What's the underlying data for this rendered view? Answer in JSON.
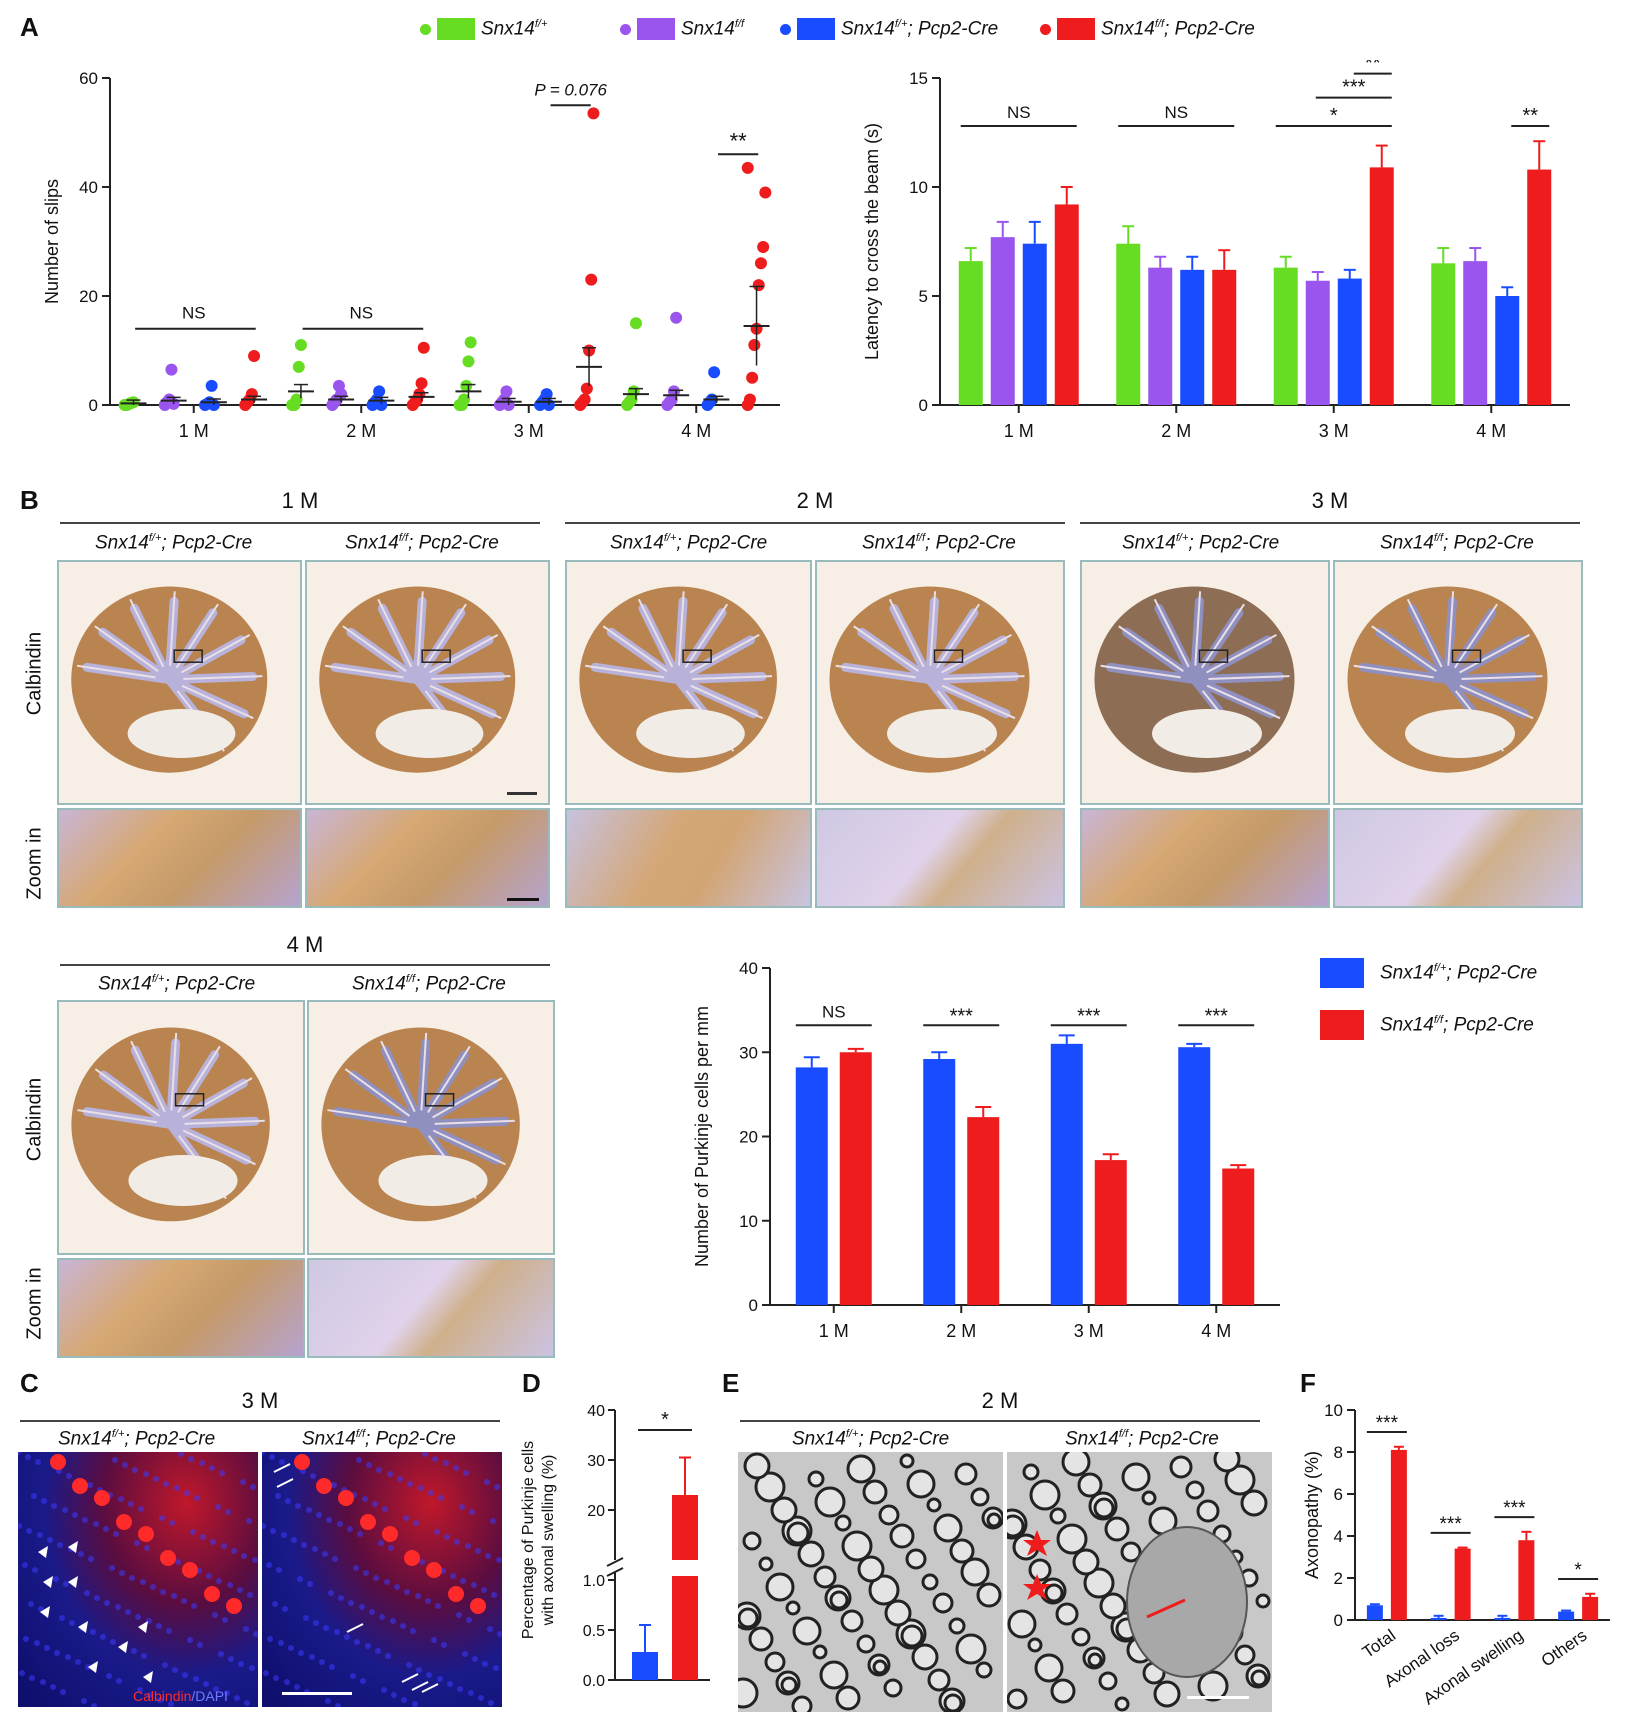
{
  "panels": {
    "A": "A",
    "B": "B",
    "C": "C",
    "D": "D",
    "E": "E",
    "F": "F"
  },
  "colors": {
    "green": "#66dd22",
    "purple": "#9955ee",
    "blue": "#1a4cff",
    "red": "#ee1c1c"
  },
  "legend": [
    {
      "label": "Snx14",
      "sup": "f/+",
      "color": "#66dd22",
      "suffix": ""
    },
    {
      "label": "Snx14",
      "sup": "f/f",
      "color": "#9955ee",
      "suffix": ""
    },
    {
      "label": "Snx14",
      "sup": "f/+",
      "color": "#1a4cff",
      "suffix": "; Pcp2-Cre"
    },
    {
      "label": "Snx14",
      "sup": "f/f",
      "color": "#ee1c1c",
      "suffix": "; Pcp2-Cre"
    }
  ],
  "genotypes": {
    "het_base": "Snx14",
    "het_sup": "f/+",
    "hom_base": "Snx14",
    "hom_sup": "f/f",
    "cre": "; Pcp2-Cre"
  },
  "row_labels": {
    "calbindin": "Calbindin",
    "zoom": "Zoom in"
  },
  "ages": {
    "m1": "1 M",
    "m2": "2 M",
    "m3": "3 M",
    "m4": "4 M"
  },
  "panel_c": {
    "title": "3 M",
    "stain_red": "Calbindin",
    "stain_blue": "DAPI"
  },
  "panel_e": {
    "title": "2 M"
  },
  "chart_data": [
    {
      "id": "A-slips",
      "type": "scatter",
      "title": "",
      "xlabel": "",
      "ylabel": "Number of slips",
      "ylim": [
        0,
        60
      ],
      "yticks": [
        0,
        20,
        40,
        60
      ],
      "categories": [
        "1 M",
        "2 M",
        "3 M",
        "4 M"
      ],
      "series_names": [
        "Snx14 f/+",
        "Snx14 f/f",
        "Snx14 f/+; Pcp2-Cre",
        "Snx14 f/f; Pcp2-Cre"
      ],
      "means": [
        [
          0.3,
          0.8,
          0.5,
          1.0
        ],
        [
          2.5,
          1.0,
          0.8,
          1.5
        ],
        [
          2.5,
          0.6,
          0.6,
          7.0
        ],
        [
          2.0,
          1.8,
          1.0,
          14.5
        ]
      ],
      "points": [
        [
          [
            0,
            0,
            0.2,
            0.4,
            0.5
          ],
          [
            0,
            0.5,
            1,
            6.5,
            0.2
          ],
          [
            0,
            0.2,
            0.5,
            3.5,
            0
          ],
          [
            0,
            0.5,
            1,
            2,
            9
          ]
        ],
        [
          [
            0,
            0,
            1,
            7,
            11
          ],
          [
            0,
            0.5,
            1,
            3.5,
            2
          ],
          [
            0,
            0.5,
            1,
            2.5,
            0
          ],
          [
            0,
            0.5,
            1,
            2,
            4,
            10.5
          ]
        ],
        [
          [
            0,
            0,
            1,
            3.5,
            8,
            11.5
          ],
          [
            0,
            0.5,
            1,
            2.5,
            0
          ],
          [
            0,
            0.5,
            1,
            2,
            0
          ],
          [
            0,
            0.5,
            1,
            3,
            10,
            23,
            53.5
          ]
        ],
        [
          [
            0,
            0.5,
            1,
            2.5,
            15
          ],
          [
            0,
            0.5,
            1,
            2.5,
            16
          ],
          [
            0,
            0.5,
            1,
            6
          ],
          [
            0,
            1,
            5,
            11,
            14,
            22,
            26,
            29,
            39,
            43.5
          ]
        ]
      ],
      "annotations": [
        {
          "group": 0,
          "text": "NS"
        },
        {
          "group": 1,
          "text": "NS"
        },
        {
          "group": 2,
          "text": "P = 0.076"
        },
        {
          "group": 3,
          "text": "**"
        }
      ]
    },
    {
      "id": "A-latency",
      "type": "bar",
      "ylabel": "Latency to cross the beam (s)",
      "ylim": [
        0,
        15
      ],
      "yticks": [
        0,
        5,
        10,
        15
      ],
      "categories": [
        "1 M",
        "2 M",
        "3 M",
        "4 M"
      ],
      "series": [
        {
          "name": "Snx14 f/+",
          "values": [
            6.6,
            7.4,
            6.3,
            6.5
          ],
          "err": [
            0.6,
            0.8,
            0.5,
            0.7
          ]
        },
        {
          "name": "Snx14 f/f",
          "values": [
            7.7,
            6.3,
            5.7,
            6.6
          ],
          "err": [
            0.7,
            0.5,
            0.4,
            0.6
          ]
        },
        {
          "name": "Snx14 f/+; Pcp2-Cre",
          "values": [
            7.4,
            6.2,
            5.8,
            5.0
          ],
          "err": [
            1.0,
            0.6,
            0.4,
            0.4
          ]
        },
        {
          "name": "Snx14 f/f; Pcp2-Cre",
          "values": [
            9.2,
            6.2,
            10.9,
            10.8
          ],
          "err": [
            0.8,
            0.9,
            1.0,
            1.3
          ]
        }
      ],
      "annotations": [
        {
          "group": 0,
          "text": "NS"
        },
        {
          "group": 1,
          "text": "NS"
        },
        {
          "group": 2,
          "text": "*"
        },
        {
          "group": 2,
          "text": "***"
        },
        {
          "group": 2,
          "text": "**"
        },
        {
          "group": 3,
          "text": "**"
        }
      ]
    },
    {
      "id": "B-purkinje",
      "type": "bar",
      "ylabel": "Number of Purkinje cells per mm",
      "ylim": [
        0,
        40
      ],
      "yticks": [
        0,
        10,
        20,
        30,
        40
      ],
      "categories": [
        "1 M",
        "2 M",
        "3 M",
        "4 M"
      ],
      "series": [
        {
          "name": "Snx14 f/+; Pcp2-Cre",
          "values": [
            28.2,
            29.2,
            31.0,
            30.6
          ],
          "err": [
            1.2,
            0.8,
            1.0,
            0.4
          ]
        },
        {
          "name": "Snx14 f/f; Pcp2-Cre",
          "values": [
            30.0,
            22.3,
            17.2,
            16.2
          ],
          "err": [
            0.4,
            1.2,
            0.7,
            0.4
          ]
        }
      ],
      "annotations": [
        {
          "group": 0,
          "text": "NS"
        },
        {
          "group": 1,
          "text": "***"
        },
        {
          "group": 2,
          "text": "***"
        },
        {
          "group": 3,
          "text": "***"
        }
      ]
    },
    {
      "id": "D-swelling",
      "type": "bar",
      "ylabel": "Percentage of Purkinje cells with axonal swelling (%)",
      "yticks": [
        "0.0",
        "0.5",
        "1.0",
        "20",
        "30",
        "40"
      ],
      "categories": [
        "Snx14 f/+; Pcp2-Cre",
        "Snx14 f/f; Pcp2-Cre"
      ],
      "values": [
        0.28,
        23.0
      ],
      "err": [
        0.27,
        7.5
      ],
      "annotations": [
        {
          "text": "*"
        }
      ]
    },
    {
      "id": "F-axonopathy",
      "type": "bar",
      "ylabel": "Axonopathy (%)",
      "ylim": [
        0,
        10
      ],
      "yticks": [
        0,
        2,
        4,
        6,
        8,
        10
      ],
      "categories": [
        "Total",
        "Axonal loss",
        "Axonal swelling",
        "Others"
      ],
      "series": [
        {
          "name": "Snx14 f/+; Pcp2-Cre",
          "values": [
            0.7,
            0.1,
            0.1,
            0.4
          ],
          "err": [
            0.05,
            0.1,
            0.1,
            0.05
          ]
        },
        {
          "name": "Snx14 f/f; Pcp2-Cre",
          "values": [
            8.1,
            3.4,
            3.8,
            1.1
          ],
          "err": [
            0.15,
            0.05,
            0.4,
            0.15
          ]
        }
      ],
      "annotations": [
        {
          "group": 0,
          "text": "***"
        },
        {
          "group": 1,
          "text": "***"
        },
        {
          "group": 2,
          "text": "***"
        },
        {
          "group": 3,
          "text": "*"
        }
      ]
    }
  ]
}
